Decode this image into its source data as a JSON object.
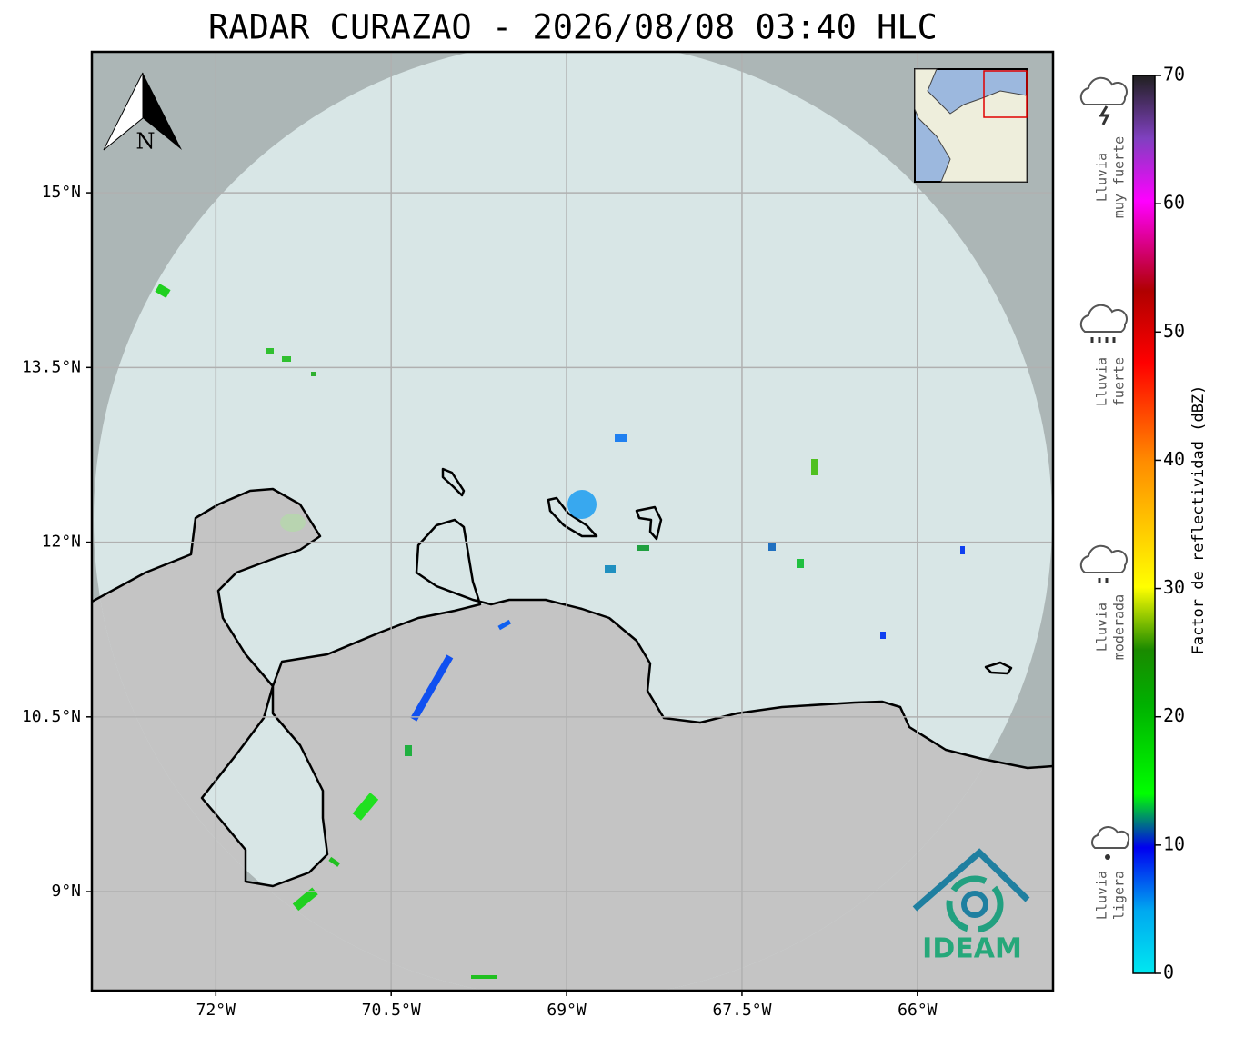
{
  "title": "RADAR CURAZAO - 2026/08/08 03:40 HLC",
  "map": {
    "lonlim": [
      -73.06,
      -64.84
    ],
    "latlim": [
      8.15,
      16.21
    ],
    "lon_ticks": [
      {
        "value": -72,
        "label": "72°W"
      },
      {
        "value": -70.5,
        "label": "70.5°W"
      },
      {
        "value": -69,
        "label": "69°W"
      },
      {
        "value": -67.5,
        "label": "67.5°W"
      },
      {
        "value": -66,
        "label": "66°W"
      }
    ],
    "lat_ticks": [
      {
        "value": 15,
        "label": "15°N"
      },
      {
        "value": 13.5,
        "label": "13.5°N"
      },
      {
        "value": 12,
        "label": "12°N"
      },
      {
        "value": 10.5,
        "label": "10.5°N"
      },
      {
        "value": 9,
        "label": "9°N"
      }
    ],
    "north_label": "N",
    "logo": "IDEAM"
  },
  "colorbar": {
    "label": "Factor de reflectividad (dBZ)",
    "lim": [
      0,
      70
    ],
    "ticks": [
      0,
      10,
      20,
      30,
      40,
      50,
      60,
      70
    ]
  },
  "legend": [
    {
      "lines": [
        "Lluvia",
        "muy fuerte"
      ]
    },
    {
      "lines": [
        "Lluvia",
        "fuerte"
      ]
    },
    {
      "lines": [
        "Lluvia",
        "moderada"
      ]
    },
    {
      "lines": [
        "Lluvia",
        "ligera"
      ]
    }
  ]
}
